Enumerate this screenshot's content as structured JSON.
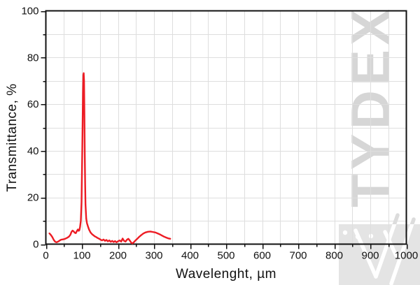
{
  "watermark": {
    "text": "TYDEX"
  },
  "colors": {
    "curve": "#ed1c24",
    "grid": "#dedede",
    "axis": "#111111",
    "watermark_text": "#d6d6d6",
    "logo_bg": "#e4e4e4",
    "logo_stroke_on_bg": "#ffffff",
    "logo_stroke_above": "#dcdcdc"
  },
  "chart_data": {
    "type": "line",
    "title": "",
    "xlabel": "Wavelenght, µm",
    "ylabel": "Transmittance, %",
    "xlim": [
      0,
      1000
    ],
    "ylim": [
      0,
      100
    ],
    "x_major_tick_step": 100,
    "x_minor_tick_step": 50,
    "y_major_tick_step": 20,
    "y_minor_tick_step": 10,
    "grid": "on (light gray, every minor tick)",
    "legend": "none",
    "peak": {
      "x": 105,
      "y": 73.3
    },
    "series": [
      {
        "name": "Transmittance",
        "color": "#ed1c24",
        "x": [
          10,
          14,
          18,
          22,
          26,
          30,
          34,
          38,
          42,
          46,
          50,
          55,
          60,
          64,
          68,
          71,
          74,
          77,
          80,
          83,
          86,
          89,
          91,
          93,
          95,
          97,
          99,
          101,
          103,
          104,
          105,
          106,
          107,
          108,
          109,
          110,
          112,
          114,
          117,
          120,
          124,
          128,
          132,
          136,
          140,
          144,
          148,
          152,
          156,
          160,
          164,
          168,
          172,
          176,
          180,
          184,
          188,
          192,
          196,
          200,
          205,
          209,
          213,
          217,
          221,
          225,
          229,
          233,
          237,
          240,
          244,
          248,
          253,
          258,
          264,
          270,
          276,
          283,
          290,
          297,
          304,
          310,
          316,
          322,
          328,
          334,
          339,
          345
        ],
        "y": [
          4.6,
          3.9,
          3.0,
          1.8,
          1.0,
          0.8,
          1.1,
          1.5,
          1.9,
          2.0,
          2.1,
          2.4,
          2.8,
          3.2,
          4.0,
          5.2,
          5.8,
          5.5,
          4.9,
          4.7,
          5.6,
          6.3,
          5.7,
          6.0,
          7.5,
          10,
          18,
          40,
          65,
          72.5,
          73.3,
          70,
          55,
          38,
          26,
          17,
          11,
          9,
          7.5,
          6.2,
          5.0,
          4.3,
          3.8,
          3.3,
          3.0,
          2.6,
          2.3,
          1.9,
          1.6,
          2.0,
          1.4,
          1.8,
          1.2,
          1.6,
          1.0,
          1.4,
          0.9,
          1.3,
          0.8,
          1.2,
          1.6,
          1.1,
          2.4,
          1.4,
          1.1,
          1.9,
          2.3,
          1.5,
          0.6,
          0.3,
          0.8,
          1.5,
          2.2,
          3.0,
          3.8,
          4.5,
          5.0,
          5.3,
          5.4,
          5.2,
          5.0,
          4.6,
          4.2,
          3.7,
          3.2,
          2.8,
          2.5,
          2.3
        ]
      }
    ]
  }
}
